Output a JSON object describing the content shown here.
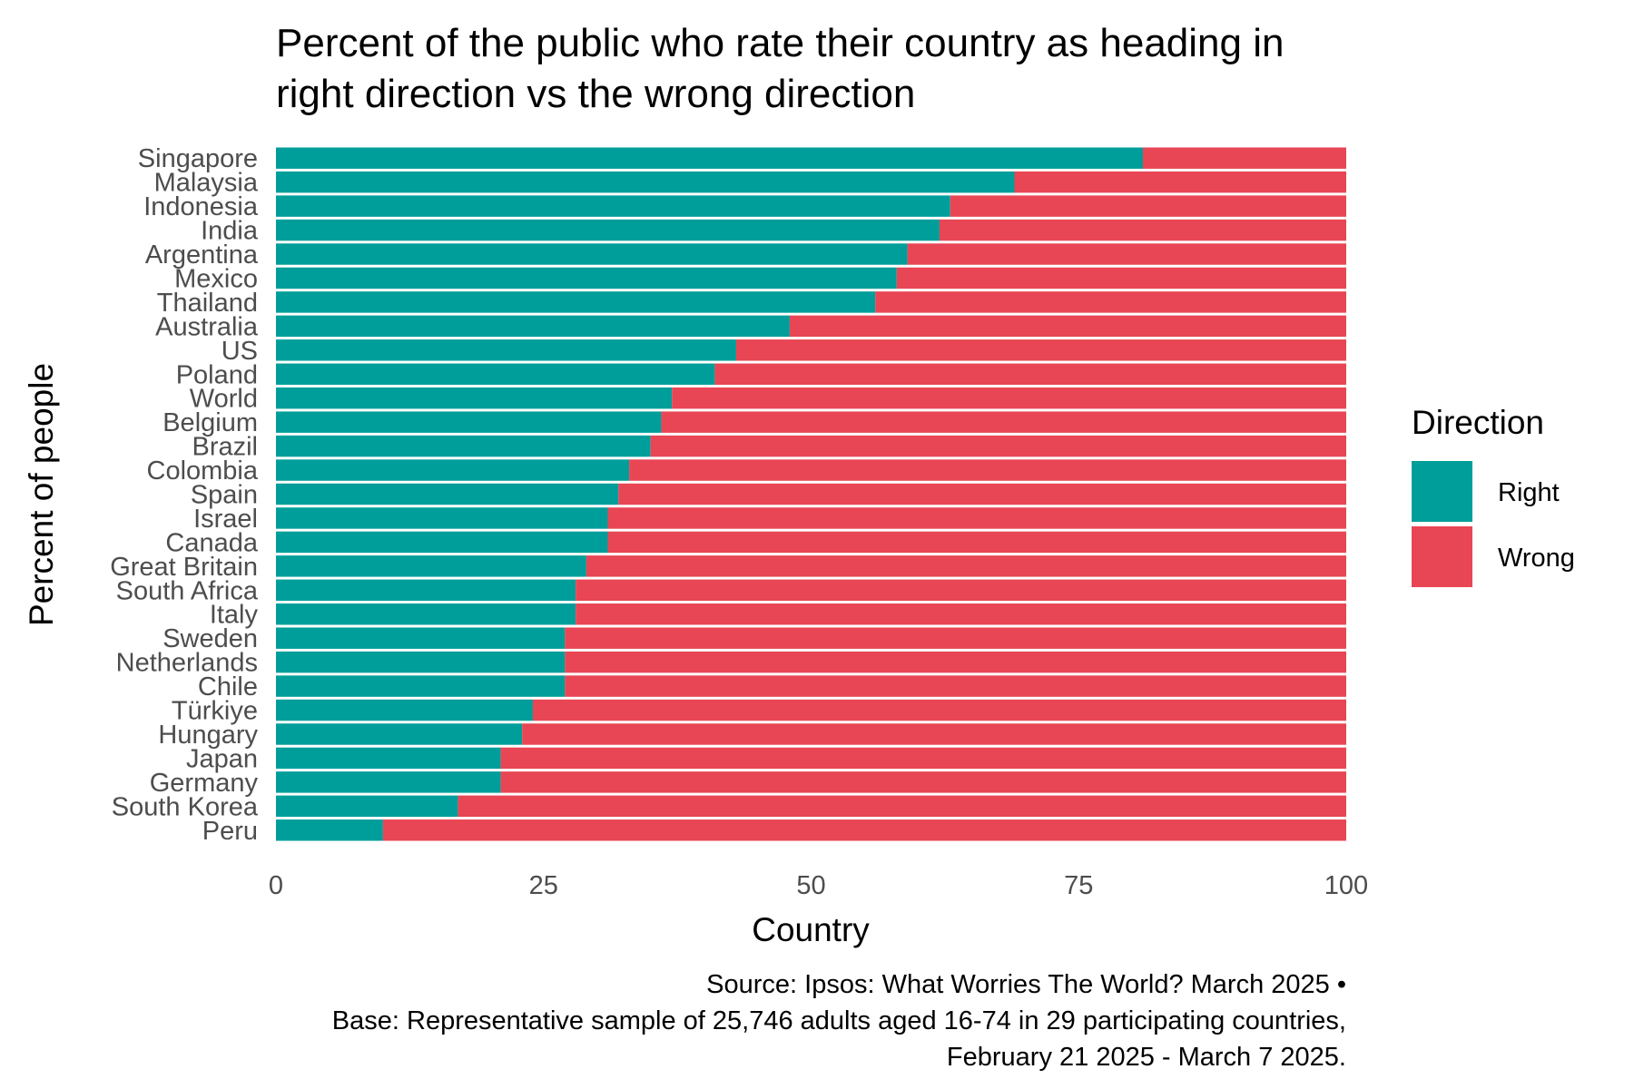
{
  "chart_data": {
    "type": "bar",
    "orientation": "horizontal",
    "stacked": true,
    "title": "Percent of the public who rate their country as heading in right direction vs the wrong direction",
    "title_lines": [
      "Percent of the public who rate their country as heading in",
      "right direction vs the wrong direction"
    ],
    "xlabel": "Country",
    "ylabel": "Percent of people",
    "xlim": [
      0,
      100
    ],
    "x_ticks": [
      0,
      25,
      50,
      75,
      100
    ],
    "x_tick_labels": [
      "0",
      "25",
      "50",
      "75",
      "100"
    ],
    "grid": false,
    "categories": [
      "Singapore",
      "Malaysia",
      "Indonesia",
      "India",
      "Argentina",
      "Mexico",
      "Thailand",
      "Australia",
      "US",
      "Poland",
      "World",
      "Belgium",
      "Brazil",
      "Colombia",
      "Spain",
      "Israel",
      "Canada",
      "Great Britain",
      "South Africa",
      "Italy",
      "Sweden",
      "Netherlands",
      "Chile",
      "Türkiye",
      "Hungary",
      "Japan",
      "Germany",
      "South Korea",
      "Peru"
    ],
    "series": [
      {
        "name": "Right",
        "color": "#009E9A",
        "values": [
          81,
          69,
          63,
          62,
          59,
          58,
          56,
          48,
          43,
          41,
          37,
          36,
          35,
          33,
          32,
          31,
          31,
          29,
          28,
          28,
          27,
          27,
          27,
          24,
          23,
          21,
          21,
          17,
          10
        ]
      },
      {
        "name": "Wrong",
        "color": "#E84655",
        "values": [
          19,
          31,
          37,
          38,
          41,
          42,
          44,
          52,
          57,
          59,
          63,
          64,
          65,
          67,
          68,
          69,
          69,
          71,
          72,
          72,
          73,
          73,
          73,
          76,
          77,
          79,
          79,
          83,
          90
        ]
      }
    ],
    "legend": {
      "title": "Direction",
      "position": "right",
      "entries": [
        "Right",
        "Wrong"
      ]
    },
    "caption_lines": [
      "Source: Ipsos: What Worries The World? March 2025 •",
      "Base: Representative sample of 25,746 adults aged 16-74 in 29 participating countries,",
      "February 21 2025 - March 7 2025."
    ]
  }
}
